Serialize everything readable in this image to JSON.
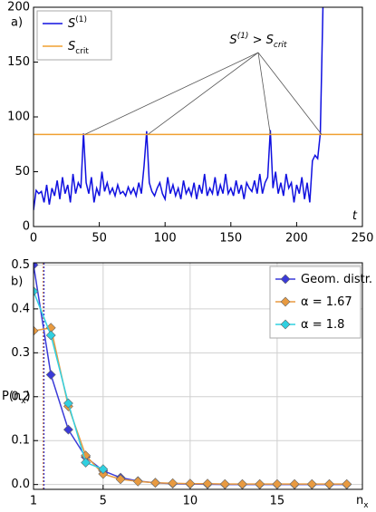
{
  "chart_data": [
    {
      "type": "line",
      "label": "a)",
      "xlabel": [
        {
          "text": "t"
        }
      ],
      "xlim": [
        0,
        250
      ],
      "xticks": [
        0,
        50,
        100,
        150,
        200,
        250
      ],
      "ylim": [
        0,
        200
      ],
      "yticks": [
        0,
        50,
        100,
        150,
        200
      ],
      "grid": false,
      "legend": "upper left",
      "series": [
        {
          "name": "S",
          "name_sup": "(1)",
          "color": "#1010e0",
          "x": [
            0,
            2,
            4,
            6,
            8,
            10,
            12,
            14,
            16,
            18,
            20,
            22,
            24,
            26,
            28,
            30,
            32,
            34,
            36,
            38,
            40,
            42,
            44,
            46,
            48,
            50,
            52,
            54,
            56,
            58,
            60,
            62,
            64,
            66,
            68,
            70,
            72,
            74,
            76,
            78,
            80,
            82,
            84,
            86,
            88,
            90,
            92,
            94,
            96,
            98,
            100,
            102,
            104,
            106,
            108,
            110,
            112,
            114,
            116,
            118,
            120,
            122,
            124,
            126,
            128,
            130,
            132,
            134,
            136,
            138,
            140,
            142,
            144,
            146,
            148,
            150,
            152,
            154,
            156,
            158,
            160,
            162,
            164,
            166,
            168,
            170,
            172,
            174,
            176,
            178,
            180,
            182,
            184,
            186,
            188,
            190,
            192,
            194,
            196,
            198,
            200,
            202,
            204,
            206,
            208,
            210,
            212,
            214,
            216,
            218,
            220
          ],
          "values": [
            15,
            33,
            30,
            32,
            22,
            38,
            20,
            35,
            28,
            42,
            25,
            45,
            30,
            38,
            22,
            48,
            30,
            40,
            35,
            85,
            40,
            30,
            45,
            22,
            35,
            28,
            50,
            32,
            40,
            30,
            35,
            28,
            38,
            30,
            32,
            28,
            36,
            30,
            35,
            28,
            40,
            30,
            55,
            87,
            40,
            32,
            28,
            35,
            40,
            30,
            25,
            45,
            30,
            38,
            28,
            35,
            25,
            42,
            30,
            35,
            28,
            40,
            25,
            38,
            30,
            48,
            28,
            35,
            30,
            45,
            28,
            38,
            30,
            48,
            30,
            35,
            28,
            42,
            30,
            38,
            25,
            40,
            35,
            32,
            42,
            30,
            48,
            30,
            40,
            45,
            88,
            35,
            50,
            30,
            40,
            28,
            48,
            35,
            40,
            22,
            38,
            30,
            45,
            25,
            40,
            22,
            60,
            65,
            62,
            85,
            200
          ]
        },
        {
          "name": "S",
          "name_sub": "crit",
          "color": "#f0a030",
          "x": [
            0,
            250
          ],
          "values": [
            84,
            84
          ]
        }
      ],
      "annotation": {
        "parts": [
          {
            "text": "S"
          },
          {
            "text": "(1)",
            "sup": true
          },
          {
            "text": " > "
          },
          {
            "text": "S"
          },
          {
            "text": "crit",
            "sub": true
          }
        ],
        "targets_x": [
          39,
          87,
          180,
          219
        ],
        "target_y": 84
      }
    },
    {
      "type": "line",
      "label": "b)",
      "xlabel": [
        {
          "text": "n"
        },
        {
          "text": "x",
          "sub": true
        }
      ],
      "ylabel": [
        {
          "text": "P(n"
        },
        {
          "text": "x",
          "sub": true
        },
        {
          "text": ")"
        }
      ],
      "xlim": [
        1,
        19.9
      ],
      "xticks": [
        1,
        5,
        10,
        15
      ],
      "ylim": [
        -0.011,
        0.505
      ],
      "yticks": [
        {
          "value": 0,
          "label": "0.0"
        },
        0.1,
        0.2,
        0.3,
        0.4,
        0.5
      ],
      "grid": true,
      "legend": "upper right",
      "vlines": [
        {
          "x": 1.55,
          "color": "#e89a40"
        },
        {
          "x": 1.6,
          "color": "#3a3ad8"
        }
      ],
      "series": [
        {
          "name": "Geom. distr.",
          "color": "#3a3ad8",
          "marker": "diamond",
          "x": [
            1,
            2,
            3,
            4,
            5,
            6,
            7,
            8,
            9,
            10,
            11,
            12,
            13,
            14,
            15,
            16,
            17,
            18,
            19
          ],
          "values": [
            0.5,
            0.25,
            0.125,
            0.0625,
            0.0313,
            0.0156,
            0.0078,
            0.0039,
            0.002,
            0.001,
            0.0005,
            0.0002,
            0.0001,
            0.0001,
            0,
            0,
            0,
            0,
            0
          ]
        },
        {
          "name": "α = 1.67",
          "color": "#e89a40",
          "marker": "diamond",
          "x": [
            1,
            2,
            3,
            4,
            5,
            6,
            7,
            8,
            9,
            10,
            11,
            12,
            13,
            14,
            15,
            16,
            17,
            18,
            19
          ],
          "values": [
            0.35,
            0.357,
            0.178,
            0.066,
            0.024,
            0.012,
            0.007,
            0.004,
            0.003,
            0.002,
            0.002,
            0.001,
            0.001,
            0.001,
            0.001,
            0.001,
            0.001,
            0.001,
            0.001
          ]
        },
        {
          "name": "α = 1.8",
          "color": "#30d0e0",
          "marker": "diamond",
          "legend_text_color": "#777777",
          "x": [
            1,
            2,
            3,
            4,
            5
          ],
          "values": [
            0.44,
            0.34,
            0.185,
            0.05,
            0.035
          ]
        }
      ]
    }
  ]
}
